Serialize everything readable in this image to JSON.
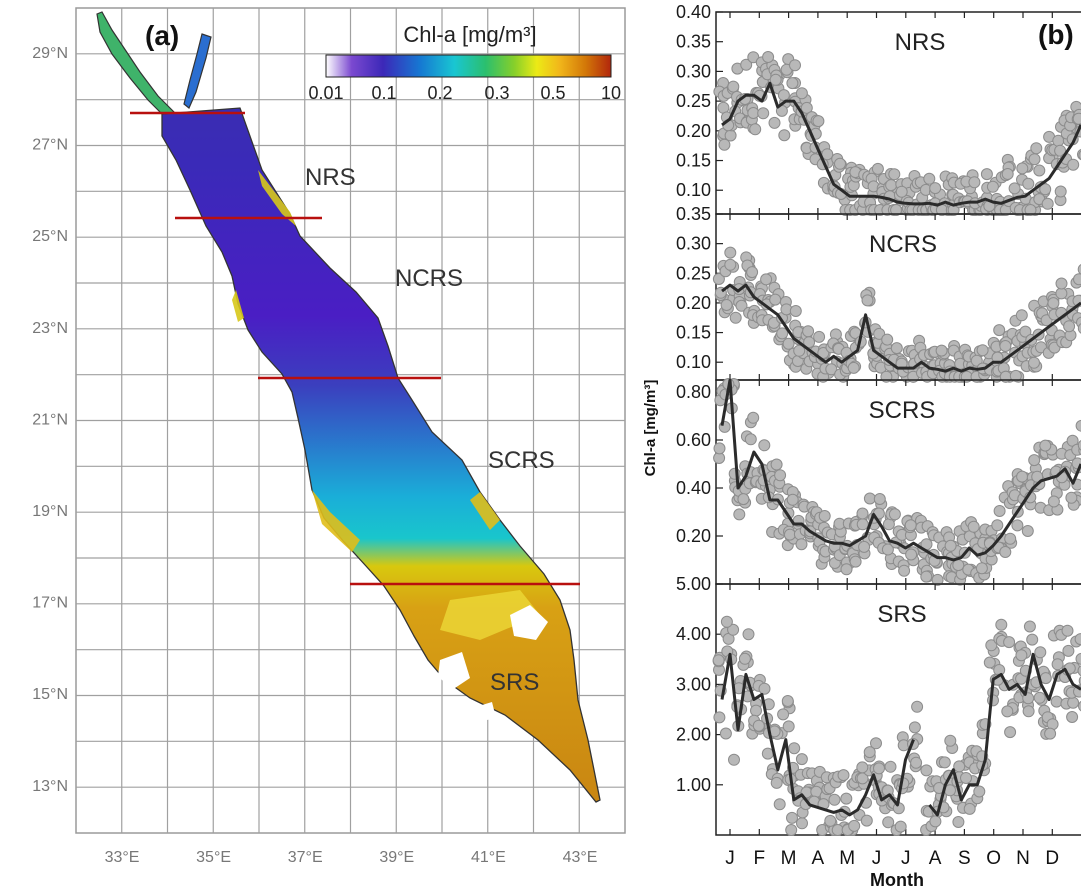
{
  "panel_a": {
    "label": "(a)",
    "colorbar": {
      "title": "Chl-a [mg/m³]",
      "ticks": [
        "0.01",
        "0.1",
        "0.2",
        "0.3",
        "0.5",
        "10"
      ],
      "colors": [
        "#ffffff",
        "#6a1fb8",
        "#3a2cb0",
        "#1478d0",
        "#19c8d2",
        "#2ac07a",
        "#7fcf2c",
        "#e8e817",
        "#f0b21a",
        "#d27808",
        "#b2280c"
      ]
    },
    "lat_labels": [
      "29°N",
      "27°N",
      "25°N",
      "23°N",
      "21°N",
      "19°N",
      "17°N",
      "15°N",
      "13°N"
    ],
    "lon_labels": [
      "33°E",
      "35°E",
      "37°E",
      "39°E",
      "41°E",
      "43°E"
    ],
    "regions": [
      "NRS",
      "NCRS",
      "SCRS",
      "SRS"
    ],
    "colors": {
      "divider": "#b8100f",
      "coast": "#333333",
      "grid": "#9a9a9a",
      "sea_deep": "#4a1db8",
      "sea_south": "#c98612"
    }
  },
  "panel_b": {
    "label": "(b)",
    "ylabel": "Chl-a [mg/m³]",
    "xlabel": "Month",
    "month_labels": [
      "J",
      "F",
      "M",
      "A",
      "M",
      "J",
      "J",
      "A",
      "S",
      "O",
      "N",
      "D"
    ],
    "colors": {
      "points": "#b3b3b3",
      "point_edge": "#888888",
      "line": "#2b2b2b"
    }
  },
  "chart_data": [
    {
      "type": "line",
      "title": "NRS",
      "xlabel": "Month",
      "ylabel": "Chl-a [mg/m³]",
      "ylim": [
        0.06,
        0.4
      ],
      "ytick_labels": [
        "0.40",
        "0.35",
        "0.30",
        "0.25",
        "0.20",
        "0.15",
        "0.10"
      ],
      "x": [
        1,
        2,
        3,
        4,
        5,
        6,
        7,
        8,
        9,
        10,
        11,
        12,
        13,
        14,
        15,
        16,
        17,
        18,
        19,
        20,
        21,
        22,
        23,
        24,
        25,
        26,
        27,
        28,
        29,
        30,
        31,
        32,
        33,
        34,
        35,
        36,
        37,
        38,
        39,
        40,
        41,
        42,
        43,
        44,
        45,
        46
      ],
      "series": [
        {
          "name": "",
          "values": [
            0.21,
            0.22,
            0.25,
            0.26,
            0.26,
            0.25,
            0.28,
            0.24,
            0.25,
            0.25,
            0.23,
            0.2,
            0.17,
            0.14,
            0.11,
            0.1,
            0.09,
            0.09,
            0.09,
            0.09,
            0.088,
            0.085,
            0.08,
            0.078,
            0.077,
            0.077,
            0.078,
            0.075,
            0.08,
            0.075,
            0.078,
            0.08,
            0.08,
            0.085,
            0.08,
            0.078,
            0.083,
            0.088,
            0.09,
            0.1,
            0.11,
            0.12,
            0.14,
            0.16,
            0.18,
            0.21
          ]
        }
      ]
    },
    {
      "type": "line",
      "title": "NCRS",
      "xlabel": "Month",
      "ylabel": "Chl-a [mg/m³]",
      "ylim": [
        0.07,
        0.35
      ],
      "ytick_labels": [
        "0.35",
        "0.30",
        "0.25",
        "0.20",
        "0.15",
        "0.10"
      ],
      "x": [
        1,
        2,
        3,
        4,
        5,
        6,
        7,
        8,
        9,
        10,
        11,
        12,
        13,
        14,
        15,
        16,
        17,
        18,
        19,
        20,
        21,
        22,
        23,
        24,
        25,
        26,
        27,
        28,
        29,
        30,
        31,
        32,
        33,
        34,
        35,
        36,
        37,
        38,
        39,
        40,
        41,
        42,
        43,
        44,
        45,
        46
      ],
      "series": [
        {
          "name": "",
          "values": [
            0.22,
            0.23,
            0.22,
            0.23,
            0.21,
            0.2,
            0.19,
            0.18,
            0.16,
            0.14,
            0.13,
            0.12,
            0.11,
            0.1,
            0.11,
            0.1,
            0.11,
            0.12,
            0.18,
            0.12,
            0.11,
            0.1,
            0.09,
            0.09,
            0.09,
            0.1,
            0.09,
            0.088,
            0.085,
            0.09,
            0.085,
            0.09,
            0.088,
            0.09,
            0.1,
            0.1,
            0.11,
            0.12,
            0.13,
            0.14,
            0.15,
            0.16,
            0.17,
            0.18,
            0.19,
            0.2
          ]
        }
      ]
    },
    {
      "type": "line",
      "title": "SCRS",
      "xlabel": "Month",
      "ylabel": "Chl-a [mg/m³]",
      "ylim": [
        0.0,
        0.85
      ],
      "ytick_labels": [
        "0.80",
        "0.60",
        "0.40",
        "0.20"
      ],
      "x": [
        1,
        2,
        3,
        4,
        5,
        6,
        7,
        8,
        9,
        10,
        11,
        12,
        13,
        14,
        15,
        16,
        17,
        18,
        19,
        20,
        21,
        22,
        23,
        24,
        25,
        26,
        27,
        28,
        29,
        30,
        31,
        32,
        33,
        34,
        35,
        36,
        37,
        38,
        39,
        40,
        41,
        42,
        43,
        44,
        45,
        46
      ],
      "series": [
        {
          "name": "",
          "values": [
            0.66,
            0.85,
            0.4,
            0.45,
            0.55,
            0.5,
            0.35,
            0.35,
            0.3,
            0.25,
            0.25,
            0.22,
            0.2,
            0.18,
            0.17,
            0.17,
            0.16,
            0.18,
            0.2,
            0.29,
            0.24,
            0.18,
            0.17,
            0.15,
            0.17,
            0.15,
            0.13,
            0.11,
            0.11,
            0.1,
            0.11,
            0.15,
            0.12,
            0.13,
            0.16,
            0.2,
            0.25,
            0.3,
            0.35,
            0.4,
            0.43,
            0.44,
            0.45,
            0.48,
            0.42,
            0.5
          ]
        }
      ]
    },
    {
      "type": "line",
      "title": "SRS",
      "xlabel": "Month",
      "ylabel": "Chl-a [mg/m³]",
      "ylim": [
        0.0,
        5.0
      ],
      "ytick_labels": [
        "5.00",
        "4.00",
        "3.00",
        "2.00",
        "1.00"
      ],
      "x": [
        1,
        2,
        3,
        4,
        5,
        6,
        7,
        8,
        9,
        10,
        11,
        12,
        13,
        14,
        15,
        16,
        17,
        18,
        19,
        20,
        21,
        22,
        23,
        24,
        25,
        26,
        27,
        28,
        29,
        30,
        31,
        32,
        33,
        34,
        35,
        36,
        37,
        38,
        39,
        40,
        41,
        42,
        43,
        44,
        45,
        46
      ],
      "series": [
        {
          "name": "",
          "values": [
            2.7,
            3.6,
            2.1,
            3.2,
            2.7,
            2.8,
            2.0,
            1.3,
            1.9,
            0.7,
            0.8,
            0.6,
            0.55,
            0.5,
            0.45,
            0.5,
            0.4,
            0.5,
            0.8,
            1.2,
            0.7,
            0.8,
            0.6,
            1.5,
            1.9,
            null,
            0.6,
            0.4,
            1.0,
            1.3,
            0.7,
            1.0,
            1.0,
            1.5,
            3.1,
            3.2,
            2.9,
            3.0,
            2.8,
            3.6,
            3.0,
            2.7,
            3.2,
            3.3,
            3.0,
            2.9
          ]
        }
      ]
    }
  ]
}
